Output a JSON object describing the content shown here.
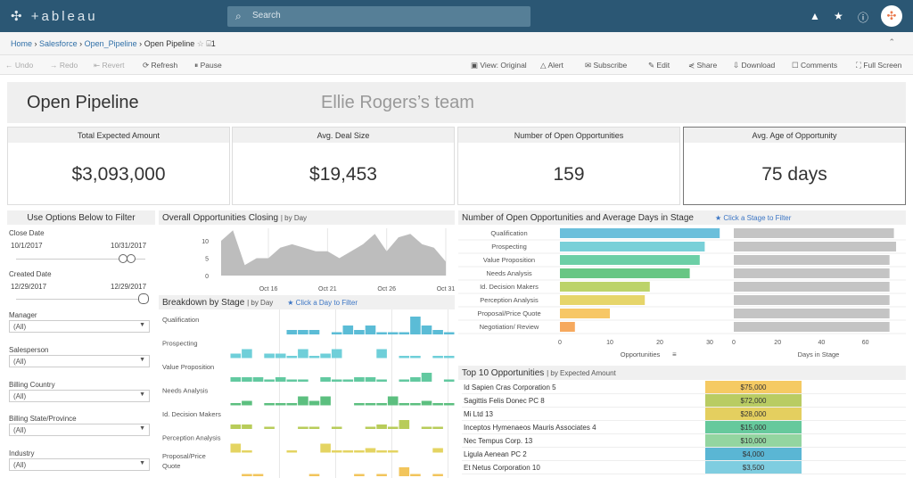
{
  "topbar": {
    "logo": "+ableau",
    "search_placeholder": "Search",
    "icons": [
      "warning-icon",
      "star-icon",
      "info-icon",
      "user-avatar"
    ]
  },
  "breadcrumb": {
    "items": [
      "Home",
      "Salesforce",
      "Open_Pipeline"
    ],
    "current": "Open Pipeline",
    "sep": "›",
    "favorite_icon": "star-outline-icon",
    "count": "1"
  },
  "toolbar": {
    "undo": "Undo",
    "redo": "Redo",
    "revert": "Revert",
    "refresh": "Refresh",
    "pause": "Pause",
    "view": "View: Original",
    "alert": "Alert",
    "subscribe": "Subscribe",
    "edit": "Edit",
    "share": "Share",
    "download": "Download",
    "comments": "Comments",
    "fullscreen": "Full Screen"
  },
  "dashboard": {
    "title": "Open Pipeline",
    "team": "Ellie Rogers’s team"
  },
  "kpis": [
    {
      "label": "Total Expected Amount",
      "value": "$3,093,000"
    },
    {
      "label": "Avg. Deal Size",
      "value": "$19,453"
    },
    {
      "label": "Number of Open Opportunities",
      "value": "159"
    },
    {
      "label": "Avg. Age of Opportunity",
      "value": "75 days"
    }
  ],
  "filters": {
    "header": "Use Options Below to Filter",
    "close_date": {
      "label": "Close Date",
      "start": "10/1/2017",
      "end": "10/31/2017"
    },
    "created_date": {
      "label": "Created Date",
      "start": "12/29/2017",
      "end": "12/29/2017"
    },
    "dropdowns": [
      {
        "label": "Manager",
        "value": "(All)"
      },
      {
        "label": "Salesperson",
        "value": "(All)"
      },
      {
        "label": "Billing Country",
        "value": "(All)"
      },
      {
        "label": "Billing State/Province",
        "value": "(All)"
      },
      {
        "label": "Industry",
        "value": "(All)"
      }
    ]
  },
  "colors": {
    "topbar": "#2b5774",
    "link": "#3b75c4",
    "area": "#bdbdbd",
    "days_bar": "#c4c4c4"
  },
  "chart_data": [
    {
      "type": "area",
      "title": "Overall Opportunities Closing",
      "subtitle": "| by Day",
      "x": [
        "Oct 12",
        "Oct 13",
        "Oct 14",
        "Oct 15",
        "Oct 16",
        "Oct 17",
        "Oct 18",
        "Oct 19",
        "Oct 20",
        "Oct 21",
        "Oct 22",
        "Oct 23",
        "Oct 24",
        "Oct 25",
        "Oct 26",
        "Oct 27",
        "Oct 28",
        "Oct 29",
        "Oct 30",
        "Oct 31"
      ],
      "values": [
        10,
        13,
        3,
        5,
        5,
        8,
        9,
        8,
        7,
        7,
        5,
        7,
        9,
        12,
        7,
        11,
        12,
        9,
        8,
        4
      ],
      "x_ticks": [
        "Oct 16",
        "Oct 21",
        "Oct 26",
        "Oct 31"
      ],
      "y_ticks": [
        "0",
        "5",
        "10"
      ],
      "ylim": [
        0,
        13
      ],
      "grid": true
    },
    {
      "type": "bar",
      "title": "Breakdown by Stage",
      "subtitle": "| by Day",
      "link": "Click a Day to Filter",
      "series": [
        {
          "name": "Qualification",
          "color": "#5bbcd6",
          "values": [
            0,
            0,
            0,
            0,
            0,
            1,
            1,
            1,
            0,
            0.3,
            2,
            1,
            2,
            0.3,
            0.3,
            0.3,
            4,
            2,
            1,
            0.3
          ]
        },
        {
          "name": "Prospecting",
          "color": "#6fcfd9",
          "values": [
            1,
            2,
            0,
            1,
            1,
            0.3,
            2,
            0.3,
            1,
            2,
            0,
            0,
            0,
            2,
            0,
            0.3,
            0.3,
            0,
            0.3,
            0.3
          ]
        },
        {
          "name": "Value Proposition",
          "color": "#62c9a0",
          "values": [
            1,
            1,
            1,
            0.3,
            1,
            0.3,
            0.3,
            0,
            1,
            0.3,
            0.3,
            1,
            1,
            0.3,
            0,
            0.3,
            1,
            2,
            0,
            0.3
          ]
        },
        {
          "name": "Needs Analysis",
          "color": "#5cbf7f",
          "values": [
            0.3,
            1,
            0,
            0.3,
            0.3,
            0.3,
            2,
            1,
            2,
            0,
            0,
            0.3,
            0.3,
            0.3,
            2,
            0.3,
            0.3,
            1,
            0.3,
            0.3
          ]
        },
        {
          "name": "Id. Decision Makers",
          "color": "#b8cc5a",
          "values": [
            1,
            1,
            0,
            0.3,
            0,
            0,
            0.3,
            0.3,
            0,
            0.3,
            0,
            0,
            0.3,
            1,
            0.3,
            2,
            0,
            0.3,
            0.3,
            0
          ]
        },
        {
          "name": "Perception Analysis",
          "color": "#e4d462",
          "values": [
            2,
            0.3,
            0,
            0,
            0,
            0.3,
            0,
            0,
            2,
            0.3,
            0.3,
            0.3,
            1,
            0.3,
            0.3,
            0,
            0,
            0,
            1,
            0
          ]
        },
        {
          "name": "Proposal/Price Quote",
          "color": "#f2c55c",
          "values": [
            0,
            0.3,
            0.3,
            0,
            0,
            0,
            0,
            0.3,
            0,
            0,
            0,
            0.3,
            0,
            0.3,
            0,
            2,
            0.3,
            0,
            0.3,
            0
          ]
        }
      ]
    },
    {
      "type": "bar",
      "orientation": "horizontal",
      "title": "Number of Open Opportunities and Average Days in Stage",
      "link": "Click a Stage to Filter",
      "categories": [
        "Qualification",
        "Prospecting",
        "Value Proposition",
        "Needs Analysis",
        "Id. Decision Makers",
        "Perception Analysis",
        "Proposal/Price Quote",
        "Negotiation/ Review"
      ],
      "colors": [
        "#6bbfdb",
        "#79d0d8",
        "#6ccfa6",
        "#68c684",
        "#bcd36a",
        "#e6d56a",
        "#f7c766",
        "#f6a95e"
      ],
      "series": [
        {
          "name": "Opportunities",
          "values": [
            32,
            29,
            28,
            26,
            18,
            17,
            10,
            3
          ],
          "xlim": [
            0,
            33
          ],
          "ticks": [
            "0",
            "10",
            "20",
            "30"
          ]
        },
        {
          "name": "Days in Stage",
          "values": [
            73,
            74,
            71,
            71,
            71,
            71,
            71,
            71
          ],
          "xlim": [
            0,
            75
          ],
          "ticks": [
            "0",
            "20",
            "40",
            "60"
          ]
        }
      ]
    },
    {
      "type": "table",
      "title": "Top 10 Opportunities",
      "subtitle": "| by Expected Amount",
      "rows": [
        {
          "name": "Id Sapien Cras Corporation 5",
          "amount": "$75,000",
          "color": "#f5ca63"
        },
        {
          "name": "Sagittis Felis Donec PC 8",
          "amount": "$72,000",
          "color": "#b9cc63"
        },
        {
          "name": "Mi Ltd 13",
          "amount": "$28,000",
          "color": "#e4cf5f"
        },
        {
          "name": "Inceptos Hymenaeos Mauris Associates 4",
          "amount": "$15,000",
          "color": "#66c99c"
        },
        {
          "name": "Nec Tempus Corp. 13",
          "amount": "$10,000",
          "color": "#93d5a0"
        },
        {
          "name": "Ligula Aenean PC 2",
          "amount": "$4,000",
          "color": "#5ab6d4"
        },
        {
          "name": "Et Netus Corporation 10",
          "amount": "$3,500",
          "color": "#7fcde0"
        }
      ]
    }
  ]
}
